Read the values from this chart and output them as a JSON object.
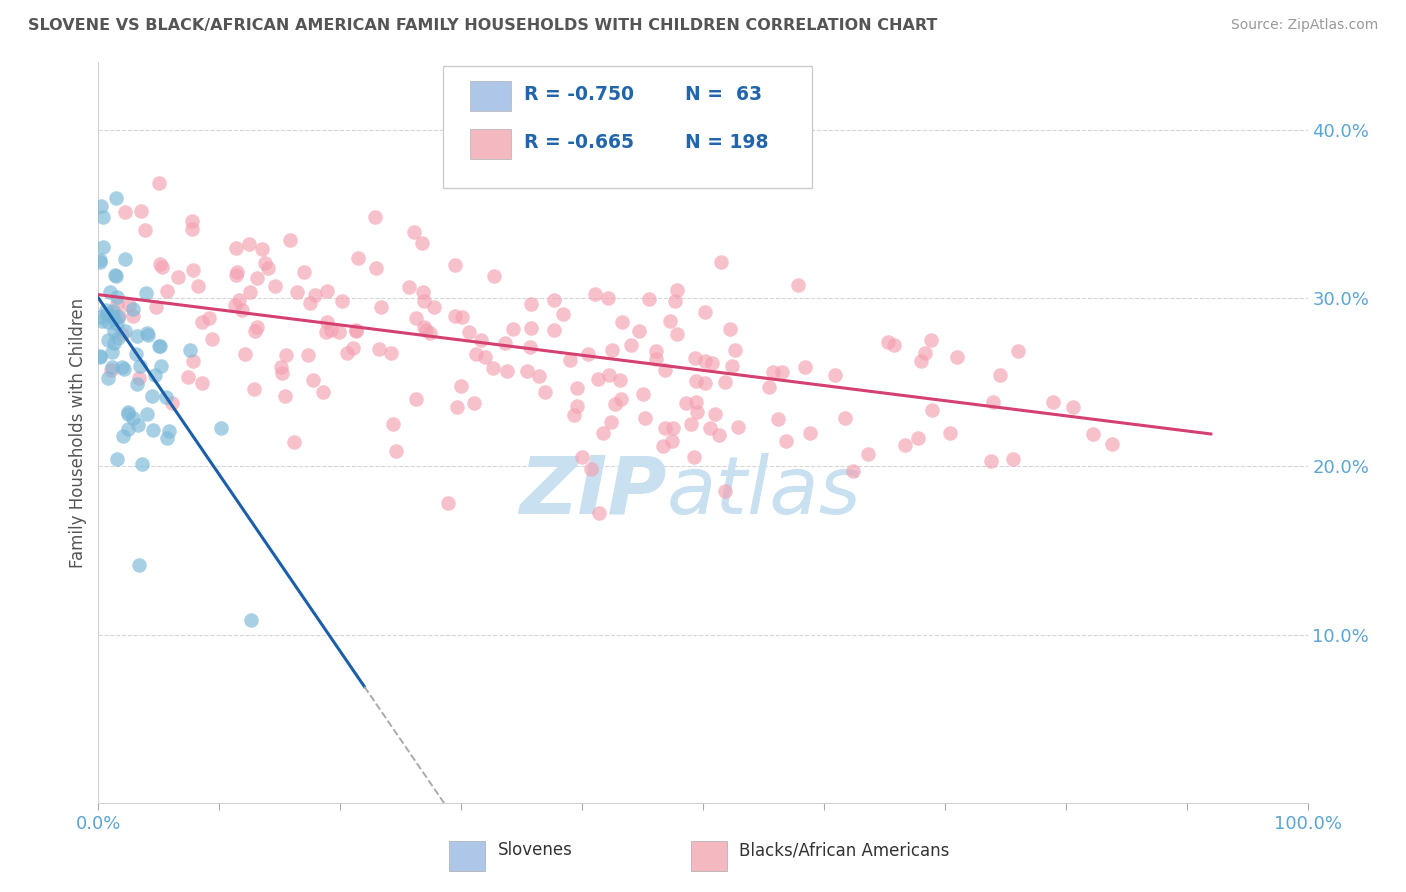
{
  "title": "SLOVENE VS BLACK/AFRICAN AMERICAN FAMILY HOUSEHOLDS WITH CHILDREN CORRELATION CHART",
  "source": "Source: ZipAtlas.com",
  "ylabel": "Family Households with Children",
  "xlim": [
    0.0,
    1.0
  ],
  "ylim": [
    0.0,
    0.44
  ],
  "yticks": [
    0.1,
    0.2,
    0.3,
    0.4
  ],
  "ytick_labels": [
    "10.0%",
    "20.0%",
    "30.0%",
    "40.0%"
  ],
  "xticks": [
    0.0,
    0.1,
    0.2,
    0.3,
    0.4,
    0.5,
    0.6,
    0.7,
    0.8,
    0.9,
    1.0
  ],
  "xtick_labels": [
    "0.0%",
    "",
    "",
    "",
    "",
    "",
    "",
    "",
    "",
    "",
    "100.0%"
  ],
  "legend_entries": [
    {
      "label_r": "R = -0.750",
      "label_n": "N =  63",
      "color": "#aec6e8"
    },
    {
      "label_r": "R = -0.665",
      "label_n": "N = 198",
      "color": "#f4b8c1"
    }
  ],
  "slovene_color": "#7ab8d8",
  "black_color": "#f4a0b0",
  "slovene_line_color": "#1a5fa8",
  "black_line_color": "#d44070",
  "background_color": "#ffffff",
  "grid_color": "#cccccc",
  "title_color": "#555555",
  "source_color": "#999999",
  "tick_color": "#5ba4d4",
  "legend_label_color": "#2166ac",
  "watermark_color": "#c8e0f0",
  "slovene_intercept": 0.3,
  "slovene_slope": -1.05,
  "black_intercept": 0.302,
  "black_slope": -0.09,
  "bottom_label_slovene": "Slovenes",
  "bottom_label_black": "Blacks/African Americans",
  "slovene_swatch_color": "#aec6e8",
  "black_swatch_color": "#f4b8c1"
}
